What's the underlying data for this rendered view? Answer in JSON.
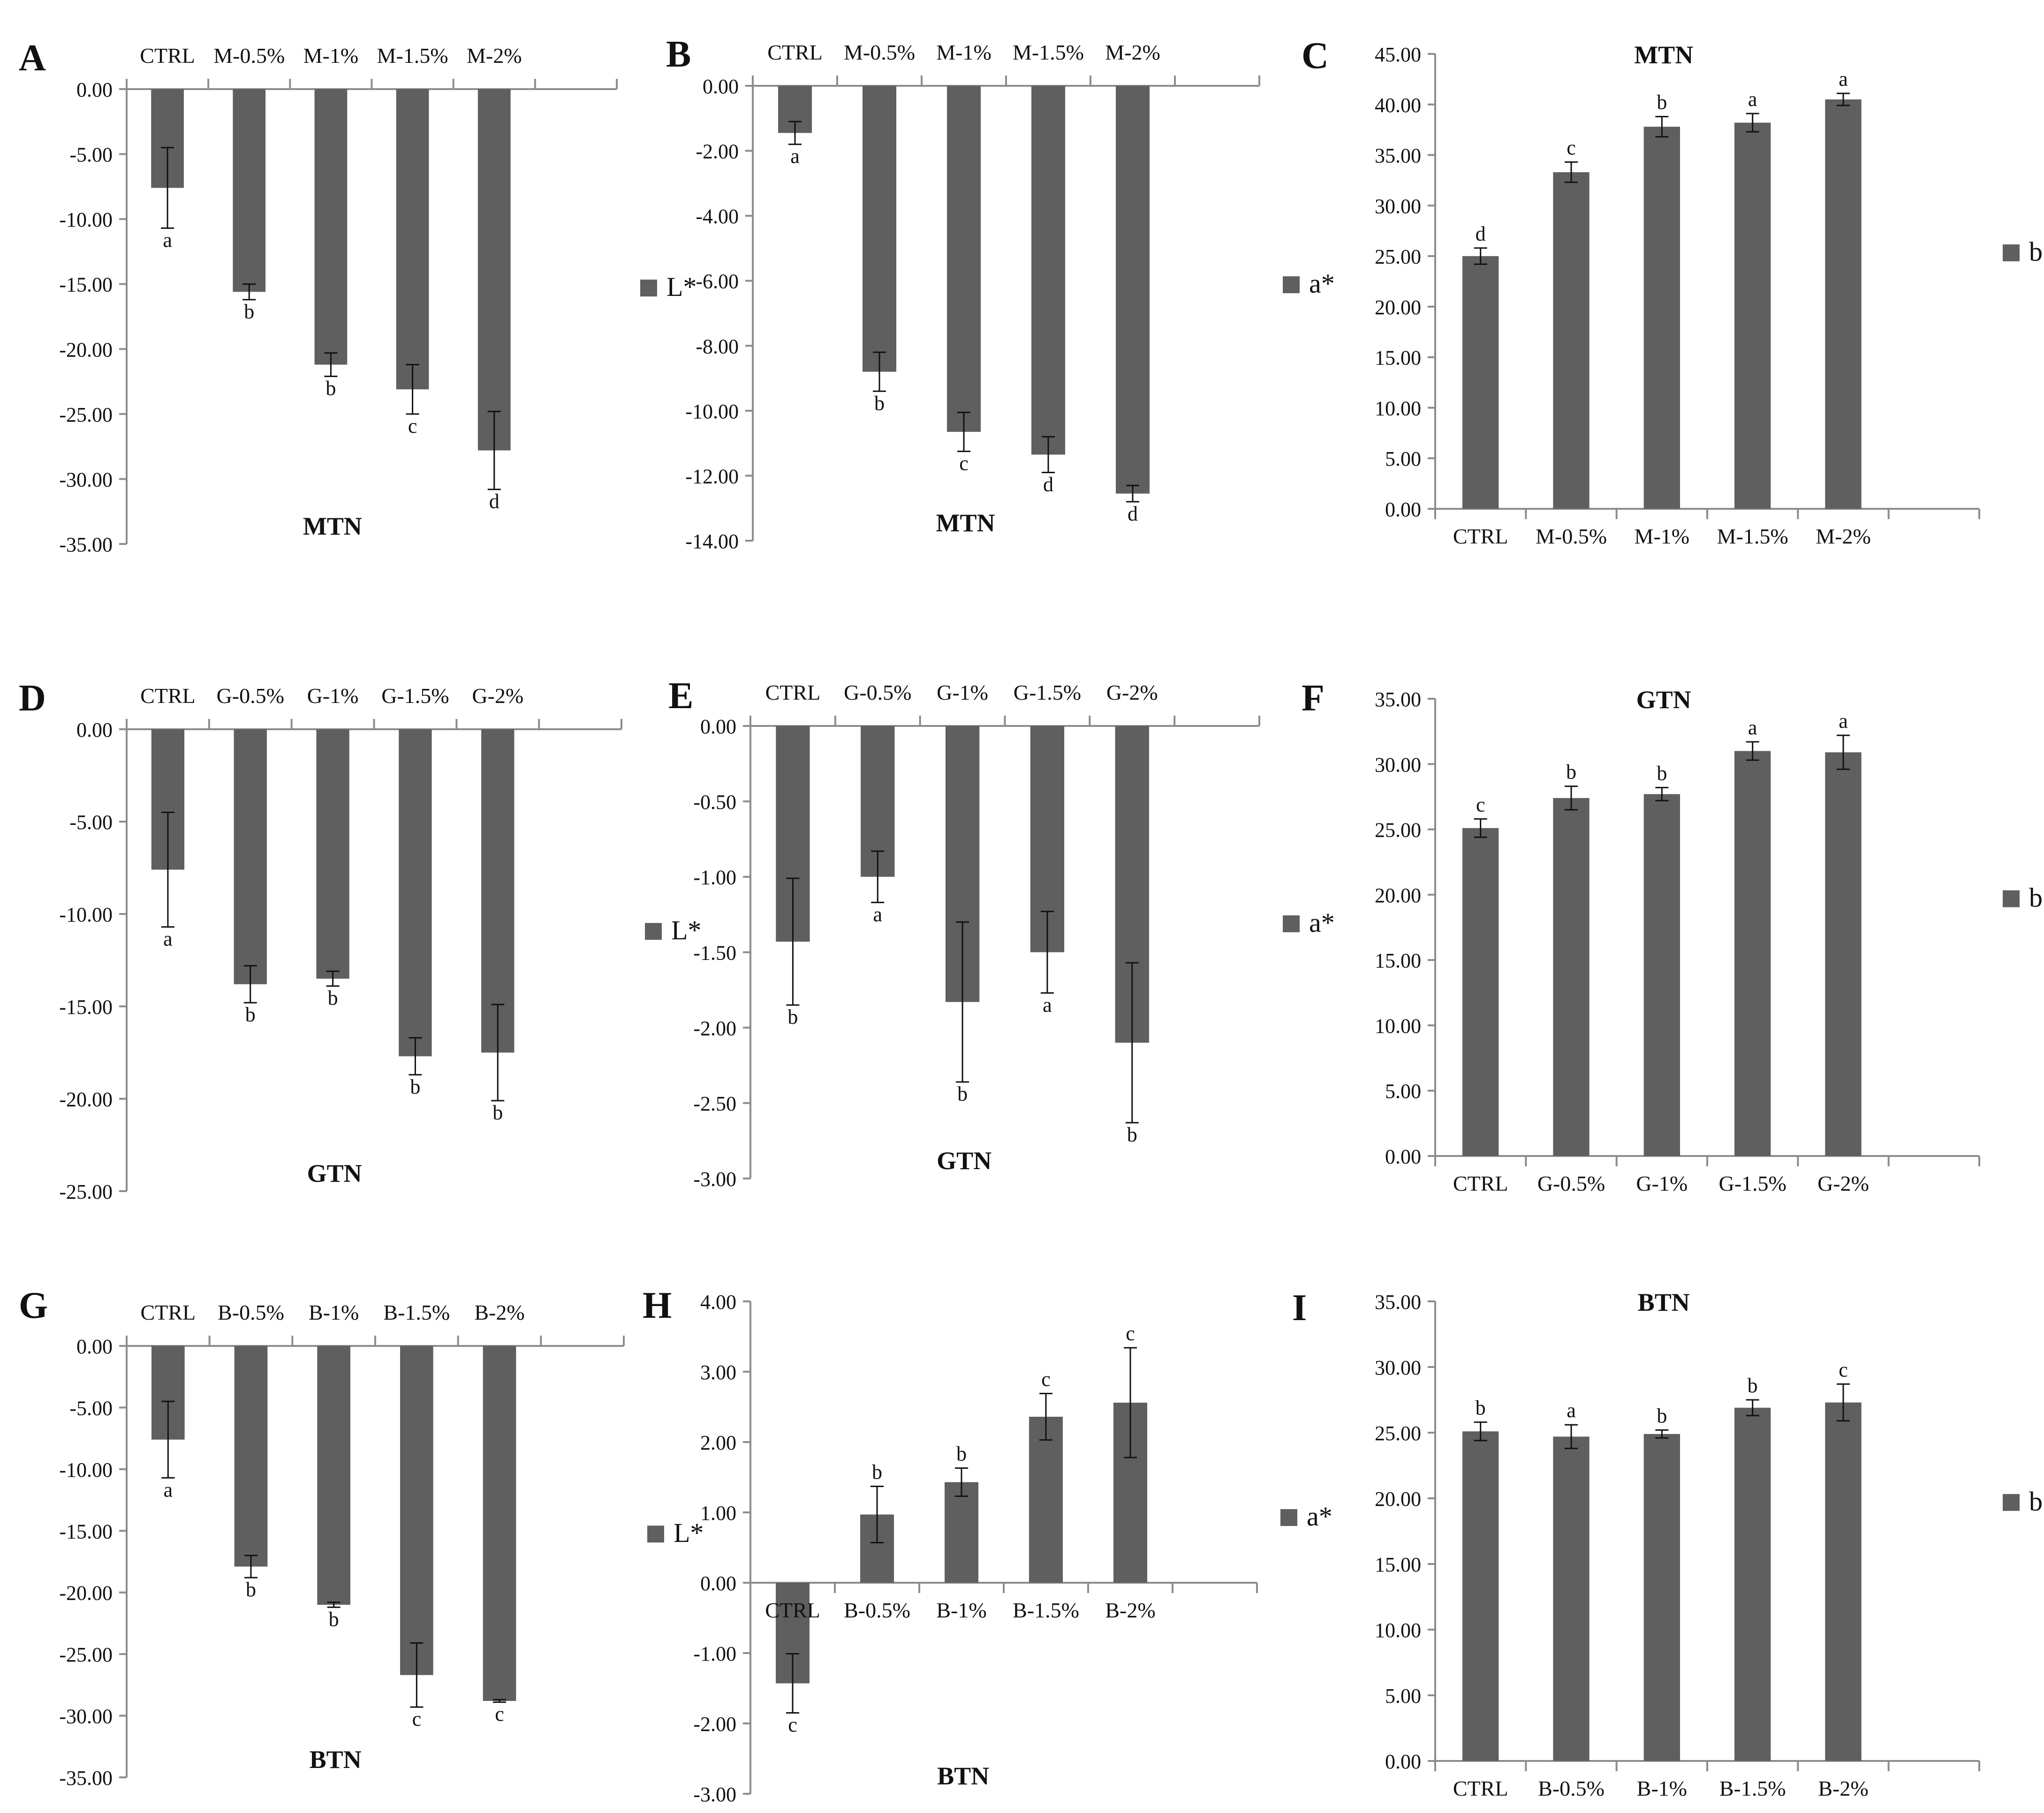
{
  "colors": {
    "bar": "#5f5f5f",
    "axis": "#8c8c8c",
    "text": "#111111",
    "background": "#ffffff"
  },
  "chart_data": [
    {
      "id": "A",
      "panel_letter": "A",
      "type": "bar",
      "title": "MTN",
      "title_position": "bottom",
      "category_position": "top",
      "legend": "L*",
      "categories": [
        "CTRL",
        "M-0.5%",
        "M-1%",
        "M-1.5%",
        "M-2%"
      ],
      "values": [
        -7.6,
        -15.6,
        -21.2,
        -23.1,
        -27.8
      ],
      "errors": [
        3.1,
        0.6,
        0.9,
        1.9,
        3.0
      ],
      "letters": [
        "a",
        "b",
        "b",
        "c",
        "d"
      ],
      "ylim": [
        -35,
        0
      ],
      "yticks": [
        "0.00",
        "-5.00",
        "-10.00",
        "-15.00",
        "-20.00",
        "-25.00",
        "-30.00",
        "-35.00"
      ]
    },
    {
      "id": "B",
      "panel_letter": "B",
      "type": "bar",
      "title": "MTN",
      "title_position": "bottom",
      "category_position": "top",
      "legend": "a*",
      "categories": [
        "CTRL",
        "M-0.5%",
        "M-1%",
        "M-1.5%",
        "M-2%"
      ],
      "values": [
        -1.45,
        -8.8,
        -10.65,
        -11.35,
        -12.55
      ],
      "errors": [
        0.35,
        0.6,
        0.6,
        0.55,
        0.25
      ],
      "letters": [
        "a",
        "b",
        "c",
        "d",
        "d"
      ],
      "ylim": [
        -14,
        0
      ],
      "yticks": [
        "0.00",
        "-2.00",
        "-4.00",
        "-6.00",
        "-8.00",
        "-10.00",
        "-12.00",
        "-14.00"
      ]
    },
    {
      "id": "C",
      "panel_letter": "C",
      "type": "bar",
      "title": "MTN",
      "title_position": "top",
      "category_position": "bottom",
      "legend": "b*",
      "categories": [
        "CTRL",
        "M-0.5%",
        "M-1%",
        "M-1.5%",
        "M-2%"
      ],
      "values": [
        25.0,
        33.3,
        37.8,
        38.2,
        40.5
      ],
      "errors": [
        0.8,
        1.0,
        1.0,
        0.9,
        0.6
      ],
      "letters": [
        "d",
        "c",
        "b",
        "a",
        "a"
      ],
      "ylim": [
        0,
        45
      ],
      "yticks": [
        "0.00",
        "5.00",
        "10.00",
        "15.00",
        "20.00",
        "25.00",
        "30.00",
        "35.00",
        "40.00",
        "45.00"
      ]
    },
    {
      "id": "D",
      "panel_letter": "D",
      "type": "bar",
      "title": "GTN",
      "title_position": "bottom",
      "category_position": "top",
      "legend": "L*",
      "categories": [
        "CTRL",
        "G-0.5%",
        "G-1%",
        "G-1.5%",
        "G-2%"
      ],
      "values": [
        -7.6,
        -13.8,
        -13.5,
        -17.7,
        -17.5
      ],
      "errors": [
        3.1,
        1.0,
        0.4,
        1.0,
        2.6
      ],
      "letters": [
        "a",
        "b",
        "b",
        "b",
        "b"
      ],
      "ylim": [
        -25,
        0
      ],
      "yticks": [
        "0.00",
        "-5.00",
        "-10.00",
        "-15.00",
        "-20.00",
        "-25.00"
      ]
    },
    {
      "id": "E",
      "panel_letter": "E",
      "type": "bar",
      "title": "GTN",
      "title_position": "bottom",
      "category_position": "top",
      "legend": "a*",
      "categories": [
        "CTRL",
        "G-0.5%",
        "G-1%",
        "G-1.5%",
        "G-2%"
      ],
      "values": [
        -1.43,
        -1.0,
        -1.83,
        -1.5,
        -2.1
      ],
      "errors": [
        0.42,
        0.17,
        0.53,
        0.27,
        0.53
      ],
      "letters": [
        "b",
        "a",
        "b",
        "a",
        "b"
      ],
      "ylim": [
        -3,
        0
      ],
      "yticks": [
        "0.00",
        "-0.50",
        "-1.00",
        "-1.50",
        "-2.00",
        "-2.50",
        "-3.00"
      ]
    },
    {
      "id": "F",
      "panel_letter": "F",
      "type": "bar",
      "title": "GTN",
      "title_position": "top",
      "category_position": "bottom",
      "legend": "b*",
      "categories": [
        "CTRL",
        "G-0.5%",
        "G-1%",
        "G-1.5%",
        "G-2%"
      ],
      "values": [
        25.1,
        27.4,
        27.7,
        31.0,
        30.9
      ],
      "errors": [
        0.7,
        0.9,
        0.5,
        0.7,
        1.3
      ],
      "letters": [
        "c",
        "b",
        "b",
        "a",
        "a"
      ],
      "ylim": [
        0,
        35
      ],
      "yticks": [
        "0.00",
        "5.00",
        "10.00",
        "15.00",
        "20.00",
        "25.00",
        "30.00",
        "35.00"
      ]
    },
    {
      "id": "G",
      "panel_letter": "G",
      "type": "bar",
      "title": "BTN",
      "title_position": "bottom",
      "category_position": "top",
      "legend": "L*",
      "categories": [
        "CTRL",
        "B-0.5%",
        "B-1%",
        "B-1.5%",
        "B-2%"
      ],
      "values": [
        -7.6,
        -17.9,
        -21.0,
        -26.7,
        -28.8
      ],
      "errors": [
        3.1,
        0.9,
        0.2,
        2.6,
        0.1
      ],
      "letters": [
        "a",
        "b",
        "b",
        "c",
        "c"
      ],
      "ylim": [
        -35,
        0
      ],
      "yticks": [
        "0.00",
        "-5.00",
        "-10.00",
        "-15.00",
        "-20.00",
        "-25.00",
        "-30.00",
        "-35.00"
      ]
    },
    {
      "id": "H",
      "panel_letter": "H",
      "type": "bar",
      "title": "BTN",
      "title_position": "bottom",
      "category_position": "zero",
      "legend": "a*",
      "categories": [
        "CTRL",
        "B-0.5%",
        "B-1%",
        "B-1.5%",
        "B-2%"
      ],
      "values": [
        -1.43,
        0.97,
        1.43,
        2.36,
        2.56
      ],
      "errors": [
        0.42,
        0.4,
        0.2,
        0.33,
        0.78
      ],
      "letters": [
        "c",
        "b",
        "b",
        "c",
        "c"
      ],
      "ylim": [
        -3,
        4
      ],
      "yticks": [
        "4.00",
        "3.00",
        "2.00",
        "1.00",
        "0.00",
        "-1.00",
        "-2.00",
        "-3.00"
      ]
    },
    {
      "id": "I",
      "panel_letter": "I",
      "type": "bar",
      "title": "BTN",
      "title_position": "top",
      "category_position": "bottom",
      "legend": "b*",
      "categories": [
        "CTRL",
        "B-0.5%",
        "B-1%",
        "B-1.5%",
        "B-2%"
      ],
      "values": [
        25.1,
        24.7,
        24.9,
        26.9,
        27.3
      ],
      "errors": [
        0.7,
        0.9,
        0.3,
        0.6,
        1.4
      ],
      "letters": [
        "b",
        "a",
        "b",
        "b",
        "c"
      ],
      "ylim": [
        0,
        35
      ],
      "yticks": [
        "0.00",
        "5.00",
        "10.00",
        "15.00",
        "20.00",
        "25.00",
        "30.00",
        "35.00"
      ]
    }
  ]
}
